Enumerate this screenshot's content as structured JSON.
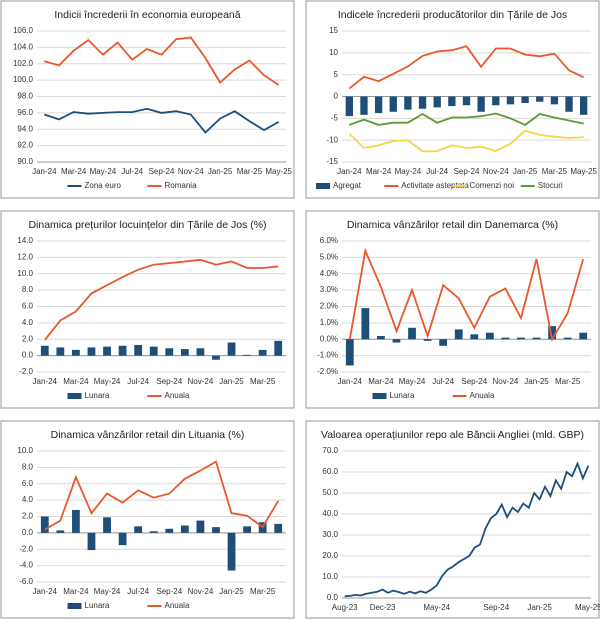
{
  "chart_data": [
    {
      "type": "combo",
      "title": "Indicii încrederii în economia europeană",
      "categories": [
        "Jan-24",
        null,
        "Mar-24",
        null,
        "May-24",
        null,
        "Jul-24",
        null,
        "Sep-24",
        null,
        "Nov-24",
        null,
        "Jan-25",
        null,
        "Mar-25",
        null,
        "May-25"
      ],
      "ylim": [
        90,
        106
      ],
      "yticks": [
        {
          "value": 90,
          "label": "90.0"
        },
        {
          "value": 92,
          "label": "92.0"
        },
        {
          "value": 94,
          "label": "94.0"
        },
        {
          "value": 96,
          "label": "96.0"
        },
        {
          "value": 98,
          "label": "98.0"
        },
        {
          "value": 100,
          "label": "100.0"
        },
        {
          "value": 102,
          "label": "102.0"
        },
        {
          "value": 104,
          "label": "104.0"
        },
        {
          "value": 106,
          "label": "106.0"
        }
      ],
      "grid": true,
      "legend": "bottom",
      "series": [
        {
          "name": "Zona euro",
          "type": "line",
          "color": "#1f4e79",
          "values": [
            95.8,
            95.2,
            96.1,
            95.9,
            96.0,
            96.1,
            96.1,
            96.5,
            96.0,
            96.2,
            95.8,
            93.6,
            95.3,
            96.2,
            95.0,
            93.9,
            94.9
          ]
        },
        {
          "name": "Romania",
          "type": "line",
          "color": "#e8582a",
          "values": [
            102.3,
            101.8,
            103.6,
            104.9,
            103.1,
            104.6,
            102.5,
            103.8,
            103.1,
            105.0,
            105.2,
            102.7,
            99.7,
            101.3,
            102.4,
            100.6,
            99.4
          ]
        }
      ]
    },
    {
      "type": "combo",
      "title": "Indicele încrederii producătorilor din Țările de Jos",
      "categories": [
        "Jan-24",
        null,
        "Mar-24",
        null,
        "May-24",
        null,
        "Jul-24",
        null,
        "Sep-24",
        null,
        "Nov-24",
        null,
        "Jan-25",
        null,
        "Mar-25",
        null,
        "May-25"
      ],
      "ylim": [
        -15,
        15
      ],
      "yticks": [
        -15,
        -10,
        -5,
        0,
        5,
        10,
        15
      ],
      "grid": true,
      "legend": "bottom",
      "series": [
        {
          "name": "Agregat",
          "type": "bar",
          "color": "#1f4e79",
          "values": [
            -4.5,
            -4.2,
            -3.8,
            -3.5,
            -3.0,
            -2.8,
            -2.5,
            -2.2,
            -2.0,
            -3.5,
            -2.0,
            -1.8,
            -1.5,
            -1.2,
            -1.8,
            -3.5,
            -4.2
          ]
        },
        {
          "name": "Activitate asteptata",
          "type": "line",
          "color": "#e8582a",
          "values": [
            1.8,
            4.5,
            3.5,
            5.2,
            6.9,
            9.3,
            10.3,
            10.6,
            11.5,
            6.8,
            11.0,
            11.0,
            9.6,
            9.2,
            9.8,
            6.0,
            4.4
          ]
        },
        {
          "name": "Comenzi noi",
          "type": "line",
          "color": "#f5d547",
          "values": [
            -8.5,
            -11.8,
            -11.2,
            -10.2,
            -10.0,
            -12.6,
            -12.5,
            -11.2,
            -11.8,
            -11.5,
            -12.5,
            -10.8,
            -7.8,
            -8.8,
            -9.2,
            -9.5,
            -9.3
          ]
        },
        {
          "name": "Stocuri",
          "type": "line",
          "color": "#5a9e2f",
          "values": [
            -6.5,
            -5.3,
            -6.5,
            -6.0,
            -6.0,
            -4.0,
            -6.0,
            -4.8,
            -4.8,
            -4.5,
            -3.9,
            -5.0,
            -6.5,
            -4.0,
            -4.8,
            -5.5,
            -6.2
          ]
        }
      ]
    },
    {
      "type": "combo",
      "title": "Dinamica prețurilor locuințelor din Țările de Jos (%)",
      "categories": [
        "Jan-24",
        null,
        "Mar-24",
        null,
        "May-24",
        null,
        "Jul-24",
        null,
        "Sep-24",
        null,
        "Nov-24",
        null,
        "Jan-25",
        null,
        "Mar-25",
        null
      ],
      "ylim": [
        -2,
        14
      ],
      "yticks": [
        {
          "value": -2,
          "label": "-2.0"
        },
        {
          "value": 0,
          "label": "0.0"
        },
        {
          "value": 2,
          "label": "2.0"
        },
        {
          "value": 4,
          "label": "4.0"
        },
        {
          "value": 6,
          "label": "6.0"
        },
        {
          "value": 8,
          "label": "8.0"
        },
        {
          "value": 10,
          "label": "10.0"
        },
        {
          "value": 12,
          "label": "12.0"
        },
        {
          "value": 14,
          "label": "14.0"
        }
      ],
      "grid": true,
      "legend": "bottom",
      "series": [
        {
          "name": "Lunara",
          "type": "bar",
          "color": "#1f4e79",
          "values": [
            1.2,
            1.0,
            0.7,
            1.0,
            1.1,
            1.2,
            1.3,
            1.1,
            0.9,
            0.8,
            0.9,
            -0.5,
            1.6,
            0.1,
            0.7,
            1.8
          ]
        },
        {
          "name": "Anuala",
          "type": "line",
          "color": "#e8582a",
          "values": [
            1.9,
            4.3,
            5.4,
            7.6,
            8.6,
            9.6,
            10.5,
            11.1,
            11.3,
            11.5,
            11.7,
            11.1,
            11.5,
            10.7,
            10.7,
            10.9
          ]
        }
      ]
    },
    {
      "type": "combo",
      "title": "Dinamica vânzărilor retail din Danemarca (%)",
      "categories": [
        "Jan-24",
        null,
        "Mar-24",
        null,
        "May-24",
        null,
        "Jul-24",
        null,
        "Sep-24",
        null,
        "Nov-24",
        null,
        "Jan-25",
        null,
        "Mar-25",
        null
      ],
      "ylim": [
        -2,
        6
      ],
      "yticks": [
        {
          "value": -2,
          "label": "-2.0%"
        },
        {
          "value": -1,
          "label": "-1.0%"
        },
        {
          "value": 0,
          "label": "0.0%"
        },
        {
          "value": 1,
          "label": "1.0%"
        },
        {
          "value": 2,
          "label": "2.0%"
        },
        {
          "value": 3,
          "label": "3.0%"
        },
        {
          "value": 4,
          "label": "4.0%"
        },
        {
          "value": 5,
          "label": "5.0%"
        },
        {
          "value": 6,
          "label": "6.0%"
        }
      ],
      "grid": true,
      "legend": "bottom",
      "series": [
        {
          "name": "Lunara",
          "type": "bar",
          "color": "#1f4e79",
          "values": [
            -1.6,
            1.9,
            0.2,
            -0.2,
            0.7,
            -0.1,
            -0.4,
            0.6,
            0.3,
            0.4,
            0.1,
            0.1,
            0.1,
            0.8,
            0.1,
            0.4
          ]
        },
        {
          "name": "Anuala",
          "type": "line",
          "color": "#e8582a",
          "values": [
            0.0,
            5.4,
            3.2,
            0.5,
            3.0,
            0.2,
            3.3,
            2.5,
            0.7,
            2.6,
            3.1,
            1.3,
            4.9,
            0.0,
            1.6,
            4.9
          ]
        }
      ]
    },
    {
      "type": "combo",
      "title": "Dinamica vânzărilor retail din Lituania (%)",
      "categories": [
        "Jan-24",
        null,
        "Mar-24",
        null,
        "May-24",
        null,
        "Jul-24",
        null,
        "Sep-24",
        null,
        "Nov-24",
        null,
        "Jan-25",
        null,
        "Mar-25",
        null
      ],
      "ylim": [
        -6,
        10
      ],
      "yticks": [
        {
          "value": -6,
          "label": "-6.0"
        },
        {
          "value": -4,
          "label": "-4.0"
        },
        {
          "value": -2,
          "label": "-2.0"
        },
        {
          "value": 0,
          "label": "0.0"
        },
        {
          "value": 2,
          "label": "2.0"
        },
        {
          "value": 4,
          "label": "4.0"
        },
        {
          "value": 6,
          "label": "6.0"
        },
        {
          "value": 8,
          "label": "8.0"
        },
        {
          "value": 10,
          "label": "10.0"
        }
      ],
      "grid": true,
      "legend": "bottom",
      "series": [
        {
          "name": "Lunara",
          "type": "bar",
          "color": "#1f4e79",
          "values": [
            2.0,
            0.3,
            2.8,
            -2.1,
            1.9,
            -1.5,
            0.8,
            0.2,
            0.5,
            0.9,
            1.5,
            0.7,
            -4.6,
            0.8,
            1.3,
            1.1
          ]
        },
        {
          "name": "Anuala",
          "type": "line",
          "color": "#e8582a",
          "values": [
            0.4,
            1.5,
            6.8,
            2.4,
            4.8,
            3.7,
            5.2,
            4.3,
            4.8,
            6.6,
            7.6,
            8.7,
            2.4,
            2.1,
            0.7,
            3.9
          ]
        }
      ]
    },
    {
      "type": "line",
      "title": "Valoarea operațiunilor repo ale Băncii Angliei (mld. GBP)",
      "categories": [
        "Aug-23",
        null,
        null,
        null,
        null,
        null,
        null,
        "Dec-23",
        null,
        null,
        null,
        null,
        null,
        null,
        null,
        null,
        null,
        "May-24",
        null,
        null,
        null,
        null,
        null,
        null,
        null,
        null,
        null,
        null,
        "Sep-24",
        null,
        null,
        null,
        null,
        null,
        null,
        null,
        "Jan-25",
        null,
        null,
        null,
        null,
        null,
        null,
        null,
        null,
        "May-25"
      ],
      "ylim": [
        0,
        70
      ],
      "yticks": [
        {
          "value": 0,
          "label": "0.0"
        },
        {
          "value": 10,
          "label": "10.0"
        },
        {
          "value": 20,
          "label": "20.0"
        },
        {
          "value": 30,
          "label": "30.0"
        },
        {
          "value": 40,
          "label": "40.0"
        },
        {
          "value": 50,
          "label": "50.0"
        },
        {
          "value": 60,
          "label": "60.0"
        },
        {
          "value": 70,
          "label": "70.0"
        }
      ],
      "grid": true,
      "series": [
        {
          "type": "line",
          "color": "#1f4e79",
          "values": [
            0.8,
            1.0,
            1.5,
            1.2,
            2.0,
            2.5,
            3.0,
            4.0,
            2.5,
            3.5,
            2.8,
            2.0,
            3.0,
            2.2,
            3.2,
            2.5,
            4.0,
            6.0,
            10.5,
            13.5,
            15.0,
            17.0,
            18.5,
            20.0,
            24.0,
            25.5,
            33.0,
            38.0,
            40.0,
            44.5,
            38.5,
            43.0,
            41.0,
            45.0,
            43.0,
            50.0,
            47.0,
            53.0,
            48.5,
            56.0,
            52.0,
            60.0,
            58.0,
            64.0,
            57.0,
            63.0
          ]
        }
      ]
    }
  ]
}
